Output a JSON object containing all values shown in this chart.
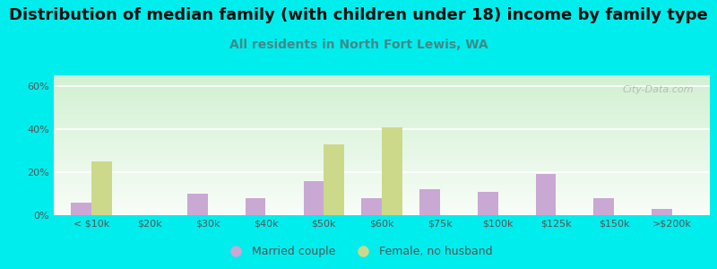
{
  "title": "Distribution of median family (with children under 18) income by family type",
  "subtitle": "All residents in North Fort Lewis, WA",
  "categories": [
    "< $10k",
    "$20k",
    "$30k",
    "$40k",
    "$50k",
    "$60k",
    "$75k",
    "$100k",
    "$125k",
    "$150k",
    ">$200k"
  ],
  "married_couple": [
    6,
    0,
    10,
    8,
    16,
    8,
    12,
    11,
    19,
    8,
    3
  ],
  "female_no_husband": [
    25,
    0,
    0,
    0,
    33,
    41,
    0,
    0,
    0,
    0,
    0
  ],
  "married_color": "#c9a8d4",
  "female_color": "#ccd98a",
  "fig_bg_color": "#00eded",
  "ylabel_ticks": [
    "0%",
    "20%",
    "40%",
    "60%"
  ],
  "ytick_vals": [
    0,
    20,
    40,
    60
  ],
  "ylim": [
    0,
    65
  ],
  "bar_width": 0.35,
  "title_fontsize": 13,
  "subtitle_fontsize": 10,
  "legend_married": "Married couple",
  "legend_female": "Female, no husband",
  "watermark": "City-Data.com",
  "tick_color": "#555555",
  "title_color": "#111111",
  "subtitle_color": "#448888"
}
